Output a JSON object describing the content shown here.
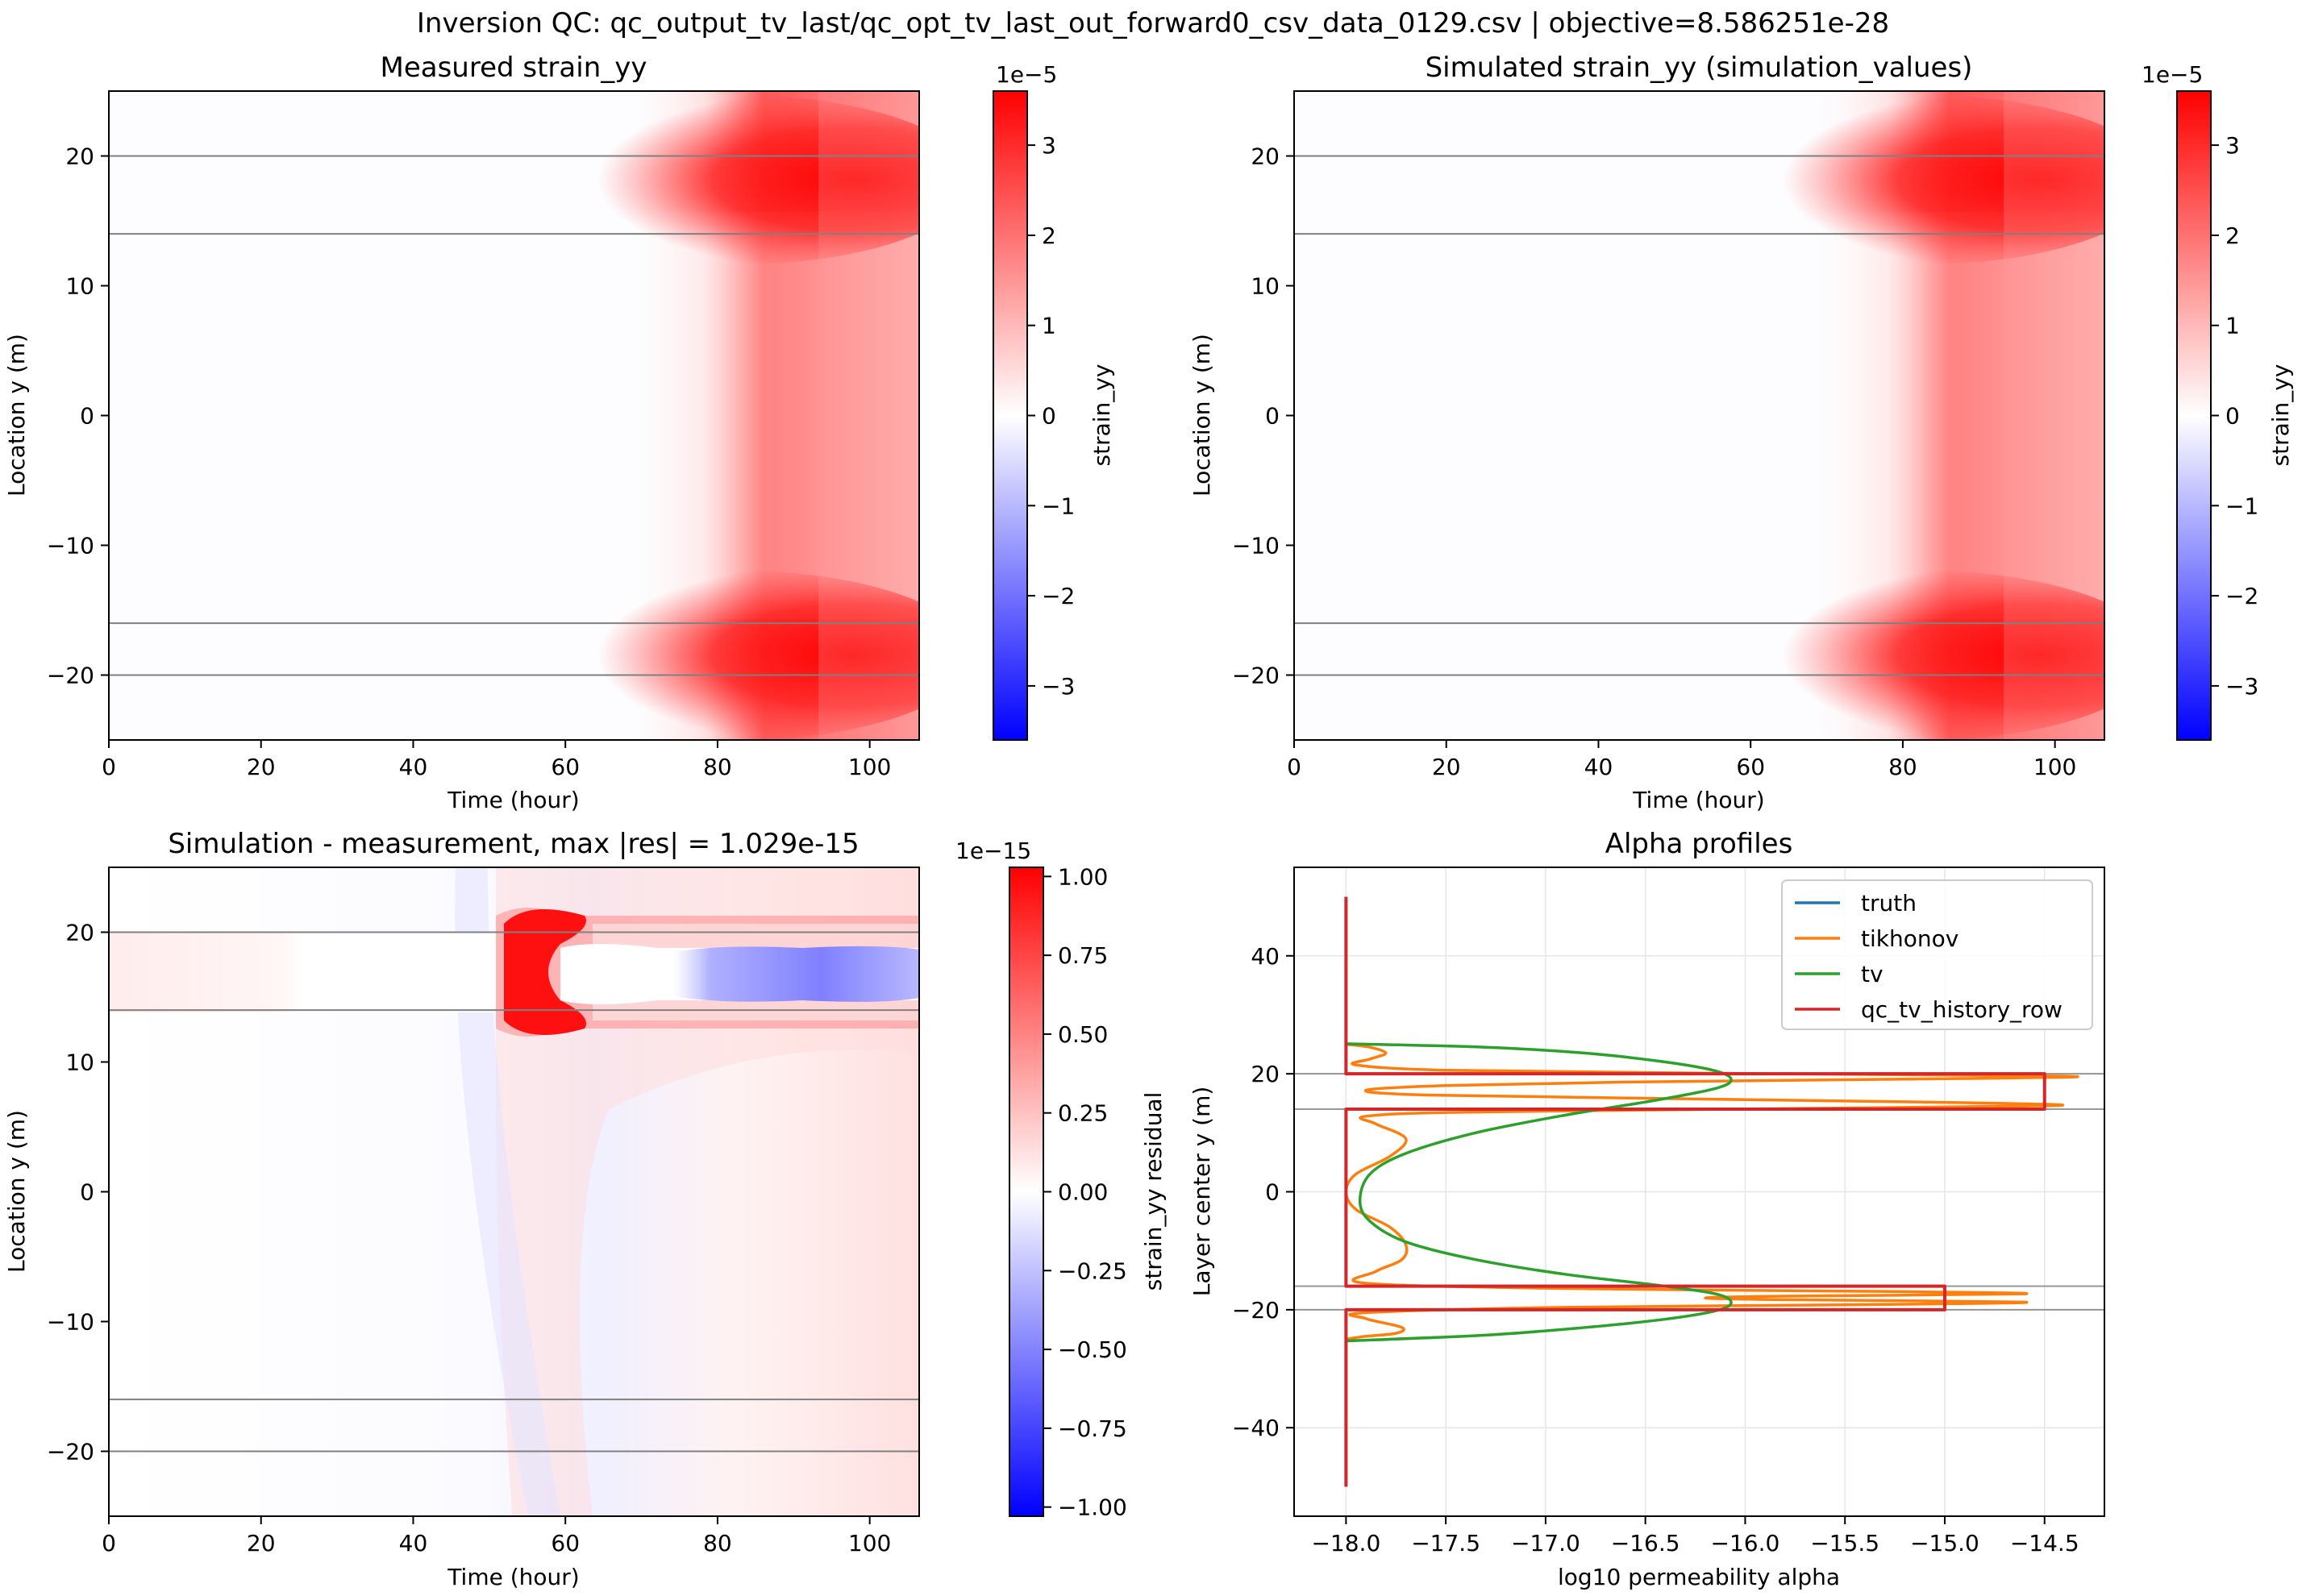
{
  "figure": {
    "suptitle": "Inversion QC: qc_output_tv_last/qc_opt_tv_last_out_forward0_csv_data_0129.csv | objective=8.586251e-28"
  },
  "colors": {
    "red": "#ff0000",
    "white": "#ffffff",
    "blue": "#0000ff",
    "hline": "#808080",
    "truth": "#1f77b4",
    "tikhonov": "#ff7f0e",
    "tv": "#2ca02c",
    "qc": "#d62728",
    "grid": "#e6e6e6"
  },
  "chart_data": [
    {
      "id": "measured",
      "type": "heatmap",
      "title": "Measured strain_yy",
      "xlabel": "Time (hour)",
      "ylabel": "Location y (m)",
      "xlim": [
        0,
        106.5
      ],
      "ylim": [
        -25,
        25
      ],
      "xticks": [
        0,
        20,
        40,
        60,
        80,
        100
      ],
      "yticks": [
        -20,
        -10,
        0,
        10,
        20
      ],
      "hlines": [
        20,
        14,
        -16,
        -20
      ],
      "colorbar": {
        "label": "strain_yy",
        "exponent": "1e−5",
        "vmin": -3.6,
        "vmax": 3.6,
        "ticks": [
          -3,
          -2,
          -1,
          0,
          1,
          2,
          3
        ],
        "tick_labels": [
          "−3",
          "−2",
          "−1",
          "0",
          "1",
          "2",
          "3"
        ]
      }
    },
    {
      "id": "simulated",
      "type": "heatmap",
      "title": "Simulated strain_yy (simulation_values)",
      "xlabel": "Time (hour)",
      "ylabel": "Location y (m)",
      "xlim": [
        0,
        106.5
      ],
      "ylim": [
        -25,
        25
      ],
      "xticks": [
        0,
        20,
        40,
        60,
        80,
        100
      ],
      "yticks": [
        -20,
        -10,
        0,
        10,
        20
      ],
      "hlines": [
        20,
        14,
        -16,
        -20
      ],
      "colorbar": {
        "label": "strain_yy",
        "exponent": "1e−5",
        "vmin": -3.6,
        "vmax": 3.6,
        "ticks": [
          -3,
          -2,
          -1,
          0,
          1,
          2,
          3
        ],
        "tick_labels": [
          "−3",
          "−2",
          "−1",
          "0",
          "1",
          "2",
          "3"
        ]
      }
    },
    {
      "id": "residual",
      "type": "heatmap",
      "title": "Simulation - measurement, max |res| = 1.029e-15",
      "xlabel": "Time (hour)",
      "ylabel": "Location y (m)",
      "xlim": [
        0,
        106.5
      ],
      "ylim": [
        -25,
        25
      ],
      "xticks": [
        0,
        20,
        40,
        60,
        80,
        100
      ],
      "yticks": [
        -20,
        -10,
        0,
        10,
        20
      ],
      "hlines": [
        20,
        14,
        -16,
        -20
      ],
      "colorbar": {
        "label": "strain_yy residual",
        "exponent": "1e−15",
        "vmin": -1.029,
        "vmax": 1.029,
        "ticks": [
          -1.0,
          -0.75,
          -0.5,
          -0.25,
          0.0,
          0.25,
          0.5,
          0.75,
          1.0
        ],
        "tick_labels": [
          "−1.00",
          "−0.75",
          "−0.50",
          "−0.25",
          "0.00",
          "0.25",
          "0.50",
          "0.75",
          "1.00"
        ]
      }
    },
    {
      "id": "alpha",
      "type": "line",
      "title": "Alpha profiles",
      "xlabel": "log10 permeability alpha",
      "ylabel": "Layer center y (m)",
      "xlim": [
        -18.26,
        -14.2
      ],
      "ylim": [
        -55,
        55
      ],
      "xticks": [
        -18.0,
        -17.5,
        -17.0,
        -16.5,
        -16.0,
        -15.5,
        -15.0,
        -14.5
      ],
      "xtick_labels": [
        "−18.0",
        "−17.5",
        "−17.0",
        "−16.5",
        "−16.0",
        "−15.5",
        "−15.0",
        "−14.5"
      ],
      "yticks": [
        -40,
        -20,
        0,
        20,
        40
      ],
      "ytick_labels": [
        "−40",
        "−20",
        "0",
        "20",
        "40"
      ],
      "grid": true,
      "hlines": [
        20,
        14,
        -16,
        -20
      ],
      "legend_position": "top-right",
      "series": [
        {
          "name": "truth",
          "points": [
            [
              -18.0,
              50
            ],
            [
              -18.0,
              20
            ],
            [
              -14.5,
              20
            ],
            [
              -14.5,
              14
            ],
            [
              -18.0,
              14
            ],
            [
              -18.0,
              -16
            ],
            [
              -15.0,
              -16
            ],
            [
              -15.0,
              -20
            ],
            [
              -18.0,
              -20
            ],
            [
              -18.0,
              -50
            ]
          ]
        },
        {
          "name": "tikhonov",
          "points": [
            [
              -18.0,
              25
            ],
            [
              -17.88,
              24.5
            ],
            [
              -17.8,
              23.5
            ],
            [
              -17.88,
              22.5
            ],
            [
              -17.95,
              21.5
            ],
            [
              -17.5,
              20.6
            ],
            [
              -16.2,
              20.1
            ],
            [
              -14.4,
              19.6
            ],
            [
              -14.9,
              19.2
            ],
            [
              -16.6,
              18.6
            ],
            [
              -17.5,
              18.0
            ],
            [
              -17.9,
              17.2
            ],
            [
              -17.6,
              16.4
            ],
            [
              -16.4,
              15.8
            ],
            [
              -14.9,
              15.1
            ],
            [
              -14.45,
              14.6
            ],
            [
              -15.8,
              14.1
            ],
            [
              -17.4,
              13.5
            ],
            [
              -17.9,
              12.8
            ],
            [
              -17.85,
              11.5
            ],
            [
              -17.7,
              9.0
            ],
            [
              -17.78,
              6.0
            ],
            [
              -17.95,
              3.0
            ],
            [
              -18.0,
              0
            ],
            [
              -17.95,
              -3.0
            ],
            [
              -17.78,
              -6.0
            ],
            [
              -17.7,
              -9.0
            ],
            [
              -17.72,
              -11.5
            ],
            [
              -17.85,
              -13.5
            ],
            [
              -17.9,
              -15.5
            ],
            [
              -16.9,
              -16.4
            ],
            [
              -15.3,
              -16.9
            ],
            [
              -14.6,
              -17.3
            ],
            [
              -15.8,
              -17.7
            ],
            [
              -16.2,
              -18.0
            ],
            [
              -15.8,
              -18.3
            ],
            [
              -14.6,
              -18.7
            ],
            [
              -15.3,
              -19.1
            ],
            [
              -16.9,
              -19.6
            ],
            [
              -17.9,
              -20.5
            ],
            [
              -17.9,
              -21.5
            ],
            [
              -17.72,
              -23.0
            ],
            [
              -17.75,
              -24.0
            ],
            [
              -17.9,
              -24.5
            ],
            [
              -18.0,
              -25
            ]
          ]
        },
        {
          "name": "tv",
          "points": [
            [
              -18.0,
              25.1
            ],
            [
              -17.3,
              24.5
            ],
            [
              -16.8,
              23.5
            ],
            [
              -16.4,
              22.0
            ],
            [
              -16.15,
              20.5
            ],
            [
              -16.07,
              19.0
            ],
            [
              -16.15,
              17.5
            ],
            [
              -16.45,
              15.5
            ],
            [
              -16.9,
              13.0
            ],
            [
              -17.35,
              10.0
            ],
            [
              -17.7,
              6.5
            ],
            [
              -17.88,
              3.0
            ],
            [
              -17.93,
              -1.5
            ],
            [
              -17.88,
              -5.0
            ],
            [
              -17.7,
              -8.5
            ],
            [
              -17.35,
              -11.5
            ],
            [
              -16.9,
              -14.0
            ],
            [
              -16.45,
              -15.8
            ],
            [
              -16.15,
              -17.3
            ],
            [
              -16.07,
              -18.8
            ],
            [
              -16.15,
              -20.2
            ],
            [
              -16.4,
              -21.6
            ],
            [
              -16.8,
              -23.0
            ],
            [
              -17.3,
              -24.3
            ],
            [
              -18.0,
              -25.3
            ]
          ]
        },
        {
          "name": "qc_tv_history_row",
          "points": [
            [
              -18.0,
              50
            ],
            [
              -18.0,
              20
            ],
            [
              -14.5,
              20
            ],
            [
              -14.5,
              14
            ],
            [
              -18.0,
              14
            ],
            [
              -18.0,
              -16
            ],
            [
              -15.0,
              -16
            ],
            [
              -15.0,
              -20
            ],
            [
              -18.0,
              -20
            ],
            [
              -18.0,
              -50
            ]
          ]
        }
      ]
    }
  ]
}
